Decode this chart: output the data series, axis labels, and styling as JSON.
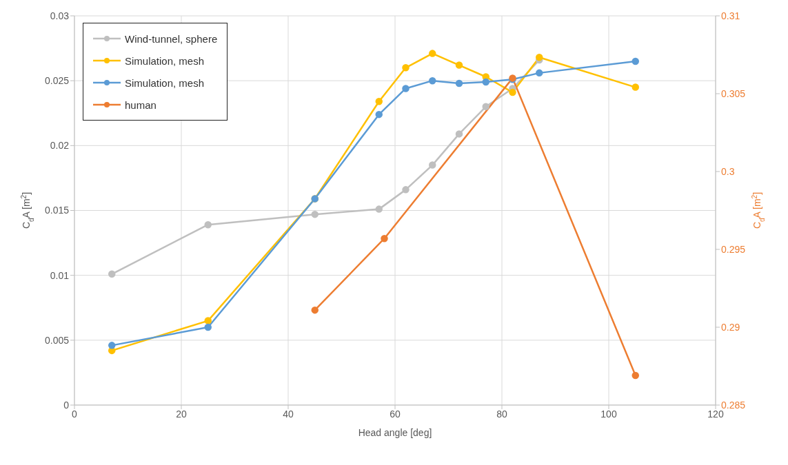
{
  "chart_data": {
    "type": "line",
    "xlabel": "Head angle [deg]",
    "ylabel": "C$_{d}$A [m$^{2}$]",
    "y2label": "C$_{d}$A [m$^{2}$]",
    "xlim": [
      0,
      120
    ],
    "xticks": [
      0,
      20,
      40,
      60,
      80,
      100,
      120
    ],
    "ylim": [
      0,
      0.03
    ],
    "yticks": [
      0,
      0.005,
      0.01,
      0.015,
      0.02,
      0.025,
      0.03
    ],
    "y2lim": [
      0.285,
      0.31
    ],
    "y2ticks": [
      0.285,
      0.29,
      0.295,
      0.3,
      0.305,
      0.31
    ],
    "grid": true,
    "legend": "top left",
    "marker": "circle",
    "line_style": "solid",
    "series": [
      {
        "name": "Wind-tunnel, sphere",
        "color": "#bfbfbf",
        "x": [
          7,
          25,
          45,
          57,
          62,
          67,
          72,
          77,
          82,
          87
        ],
        "values": [
          0.0101,
          0.0139,
          0.0147,
          0.0151,
          0.0166,
          0.0185,
          0.0209,
          0.023,
          0.0244,
          0.0266
        ]
      },
      {
        "name": "Simulation, mesh",
        "color": "#ffc000",
        "x": [
          7,
          25,
          45,
          57,
          62,
          67,
          72,
          77,
          82,
          87,
          105
        ],
        "values": [
          0.0042,
          0.0065,
          0.0159,
          0.0234,
          0.026,
          0.0271,
          0.0262,
          0.0253,
          0.0241,
          0.0268,
          0.0245
        ]
      },
      {
        "name": "Simulation, mesh",
        "color": "#5b9bd5",
        "x": [
          7,
          25,
          45,
          57,
          62,
          67,
          72,
          77,
          82,
          87,
          105
        ],
        "values": [
          0.0046,
          0.006,
          0.0159,
          0.0224,
          0.0244,
          0.025,
          0.0248,
          0.0249,
          0.0251,
          0.0256,
          0.0265
        ]
      },
      {
        "name": "human",
        "color": "#ed7d31",
        "axis": "y2",
        "x": [
          45,
          58,
          82,
          105
        ],
        "values": [
          0.2911,
          0.2957,
          0.306,
          0.2869
        ]
      }
    ]
  }
}
